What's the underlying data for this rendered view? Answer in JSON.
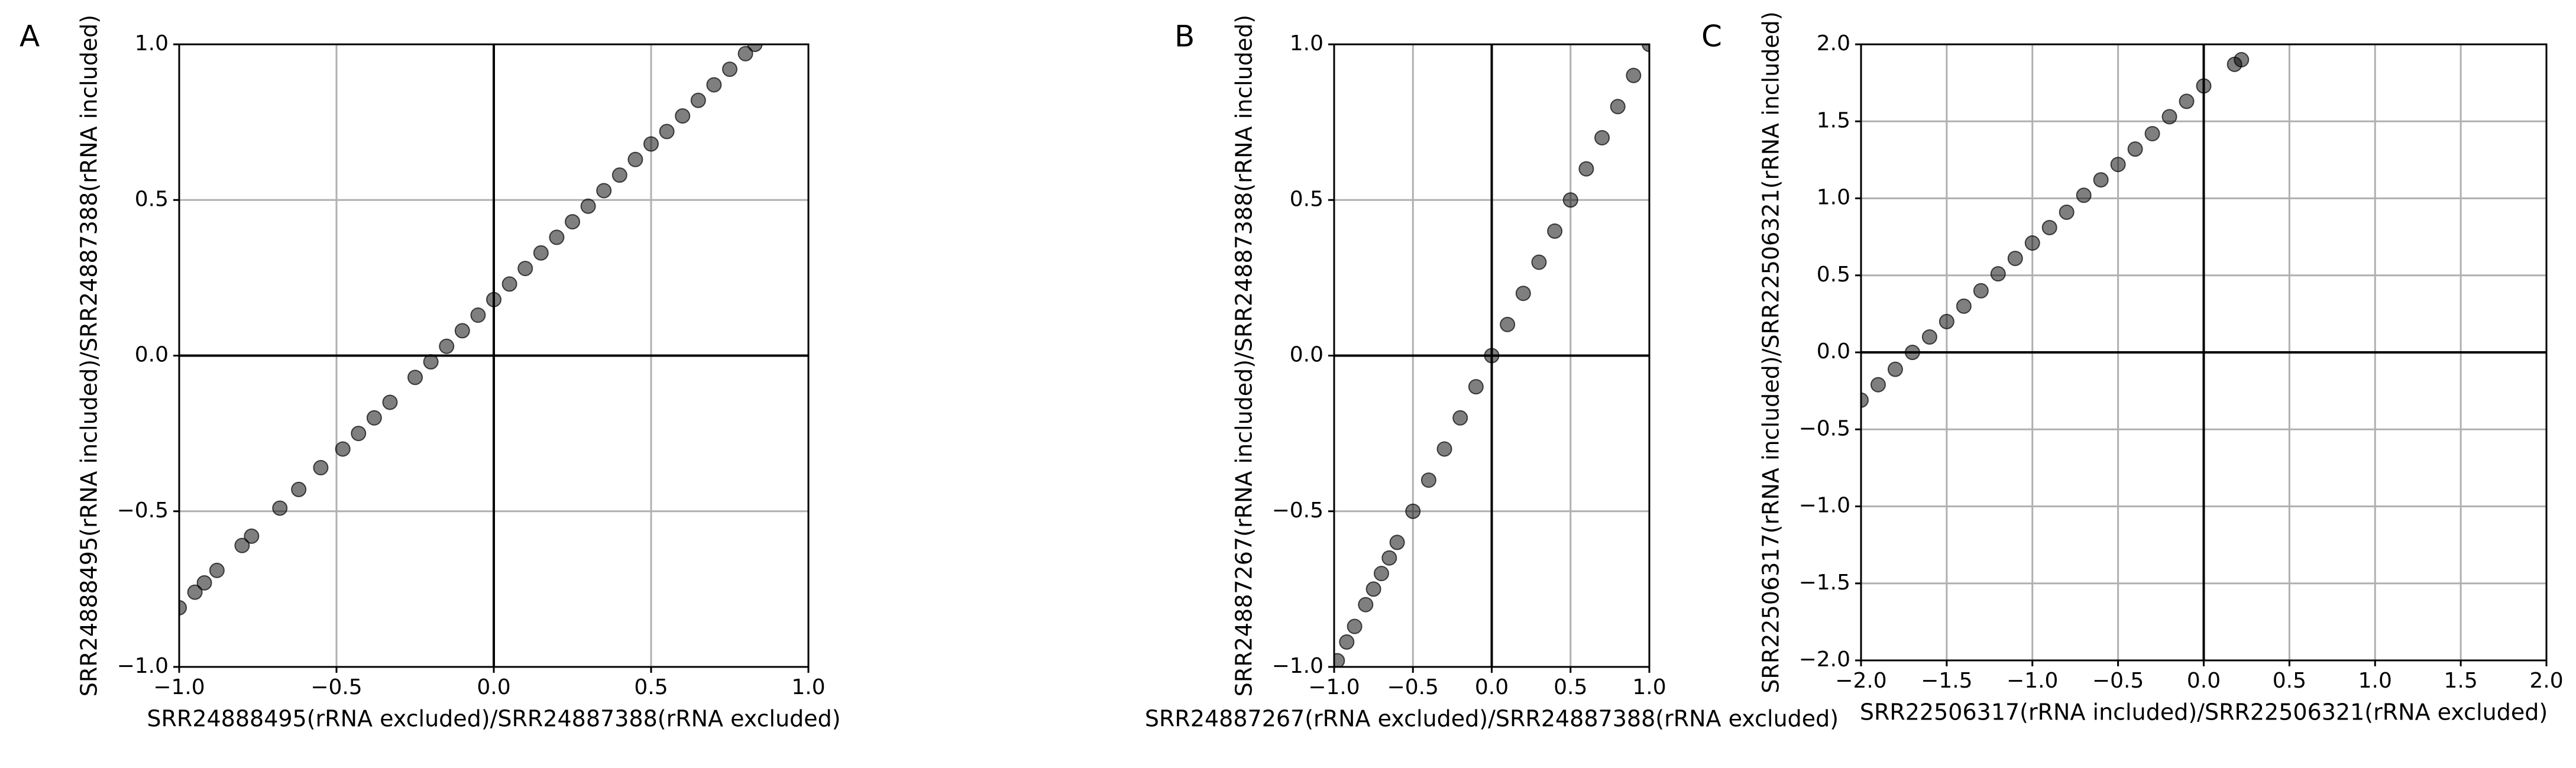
{
  "chart_data": [
    {
      "type": "scatter",
      "panel": "A",
      "x_label": "SRR24888495(rRNA excluded)/SRR24887388(rRNA excluded)",
      "y_label": "SRR24888495(rRNA included)/SRR24887388(rRNA included)",
      "xlim": [
        -1.0,
        1.0
      ],
      "ylim": [
        -1.0,
        1.0
      ],
      "xticks": [
        {
          "value": -1.0,
          "label": "−1.0"
        },
        {
          "value": -0.5,
          "label": "−0.5"
        },
        {
          "value": 0.0,
          "label": "0.0"
        },
        0.5,
        {
          "value": 1.0,
          "label": "1.0"
        }
      ],
      "yticks": [
        {
          "value": -1.0,
          "label": "−1.0"
        },
        {
          "value": -0.5,
          "label": "−0.5"
        },
        {
          "value": 0.0,
          "label": "0.0"
        },
        0.5,
        {
          "value": 1.0,
          "label": "1.0"
        }
      ],
      "grid": true,
      "zero_lines": true,
      "series": [
        {
          "color": "#000000",
          "x": [
            -1.0,
            -0.95,
            -0.92,
            -0.88,
            -0.8,
            -0.77,
            -0.68,
            -0.62,
            -0.55,
            -0.48,
            -0.43,
            -0.38,
            -0.33,
            -0.25,
            -0.2,
            -0.15,
            -0.1,
            -0.05,
            0,
            0.05,
            0.1,
            0.15,
            0.2,
            0.25,
            0.3,
            0.35,
            0.4,
            0.45,
            0.5,
            0.55,
            0.6,
            0.65,
            0.7,
            0.75,
            0.8,
            0.83
          ],
          "y": [
            -0.81,
            -0.76,
            -0.73,
            -0.69,
            -0.61,
            -0.58,
            -0.49,
            -0.43,
            -0.36,
            -0.3,
            -0.25,
            -0.2,
            -0.15,
            -0.07,
            -0.02,
            0.03,
            0.08,
            0.13,
            0.18,
            0.23,
            0.28,
            0.33,
            0.38,
            0.43,
            0.48,
            0.53,
            0.58,
            0.63,
            0.68,
            0.72,
            0.77,
            0.82,
            0.87,
            0.92,
            0.97,
            1.0
          ]
        }
      ]
    },
    {
      "type": "scatter",
      "panel": "B",
      "x_label": "SRR24887267(rRNA excluded)/SRR24887388(rRNA excluded)",
      "y_label": "SRR24887267(rRNA included)/SRR24887388(rRNA included)",
      "xlim": [
        -1.0,
        1.0
      ],
      "ylim": [
        -1.0,
        1.0
      ],
      "xticks": [
        {
          "value": -1.0,
          "label": "−1.0"
        },
        {
          "value": -0.5,
          "label": "−0.5"
        },
        {
          "value": 0.0,
          "label": "0.0"
        },
        0.5,
        {
          "value": 1.0,
          "label": "1.0"
        }
      ],
      "yticks": [
        {
          "value": -1.0,
          "label": "−1.0"
        },
        {
          "value": -0.5,
          "label": "−0.5"
        },
        {
          "value": 0.0,
          "label": "0.0"
        },
        0.5,
        {
          "value": 1.0,
          "label": "1.0"
        }
      ],
      "grid": true,
      "zero_lines": true,
      "series": [
        {
          "color": "#000000",
          "x": [
            -0.98,
            -0.92,
            -0.87,
            -0.8,
            -0.75,
            -0.7,
            -0.65,
            -0.6,
            -0.5,
            -0.4,
            -0.3,
            -0.2,
            -0.1,
            0.0,
            0.1,
            0.2,
            0.3,
            0.4,
            0.5,
            0.6,
            0.7,
            0.8,
            0.9,
            1.0
          ],
          "y": [
            -0.98,
            -0.92,
            -0.87,
            -0.8,
            -0.75,
            -0.7,
            -0.65,
            -0.6,
            -0.5,
            -0.4,
            -0.3,
            -0.2,
            -0.1,
            0.0,
            0.1,
            0.2,
            0.3,
            0.4,
            0.5,
            0.6,
            0.7,
            0.8,
            0.9,
            1.0
          ]
        }
      ]
    },
    {
      "type": "scatter",
      "panel": "C",
      "x_label": "SRR22506317(rRNA included)/SRR22506321(rRNA excluded)",
      "y_label": "SRR22506317(rRNA included)/SRR22506321(rRNA included)",
      "xlim": [
        -2.0,
        2.0
      ],
      "ylim": [
        -2.0,
        2.0
      ],
      "xticks": [
        {
          "value": -2.0,
          "label": "−2.0"
        },
        {
          "value": -1.5,
          "label": "−1.5"
        },
        {
          "value": -1.0,
          "label": "−1.0"
        },
        {
          "value": -0.5,
          "label": "−0.5"
        },
        {
          "value": 0.0,
          "label": "0.0"
        },
        0.5,
        {
          "value": 1.0,
          "label": "1.0"
        },
        1.5,
        {
          "value": 2.0,
          "label": "2.0"
        }
      ],
      "yticks": [
        {
          "value": -2.0,
          "label": "−2.0"
        },
        {
          "value": -1.5,
          "label": "−1.5"
        },
        {
          "value": -1.0,
          "label": "−1.0"
        },
        {
          "value": -0.5,
          "label": "−0.5"
        },
        {
          "value": 0.0,
          "label": "0.0"
        },
        0.5,
        {
          "value": 1.0,
          "label": "1.0"
        },
        1.5,
        {
          "value": 2.0,
          "label": "2.0"
        }
      ],
      "grid": true,
      "zero_lines": true,
      "series": [
        {
          "color": "#000000",
          "x": [
            -2.0,
            -1.9,
            -1.8,
            -1.7,
            -1.6,
            -1.5,
            -1.4,
            -1.3,
            -1.2,
            -1.1,
            -1.0,
            -0.9,
            -0.8,
            -0.7,
            -0.6,
            -0.5,
            -0.4,
            -0.3,
            -0.2,
            -0.1,
            0.0,
            0.18,
            0.22
          ],
          "y": [
            -0.31,
            -0.21,
            -0.11,
            0.0,
            0.1,
            0.2,
            0.3,
            0.4,
            0.51,
            0.61,
            0.71,
            0.81,
            0.91,
            1.02,
            1.12,
            1.22,
            1.32,
            1.42,
            1.53,
            1.63,
            1.73,
            1.87,
            1.9
          ]
        }
      ]
    }
  ]
}
